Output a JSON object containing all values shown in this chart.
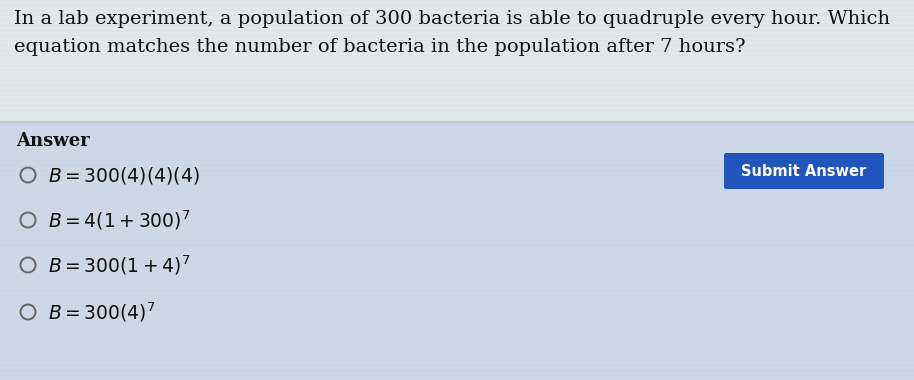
{
  "bg_top_color": "#e8ecec",
  "bg_bottom_color": "#d8e4ee",
  "question_line1": "In a lab experiment, a population of 300 bacteria is able to quadruple every hour. Which",
  "question_line2": "equation matches the number of bacteria in the population after 7 hours?",
  "answer_label": "Answer",
  "options": [
    "$B = 300(4)(4)(4)$",
    "$B = 4(1 + 300)^7$",
    "$B = 300(1 + 4)^7$",
    "$B = 300(4)^7$"
  ],
  "button_text": "Submit Answer",
  "button_color": "#2255bb",
  "button_text_color": "#ffffff",
  "text_color": "#111111",
  "divider_color": "#b8c8d8",
  "circle_color": "#666666",
  "font_size_question": 14.0,
  "font_size_answer_label": 13.0,
  "font_size_options": 13.5,
  "font_size_button": 10.5,
  "stripe_color": "#c0d0e0",
  "stripe_alpha": 0.18
}
